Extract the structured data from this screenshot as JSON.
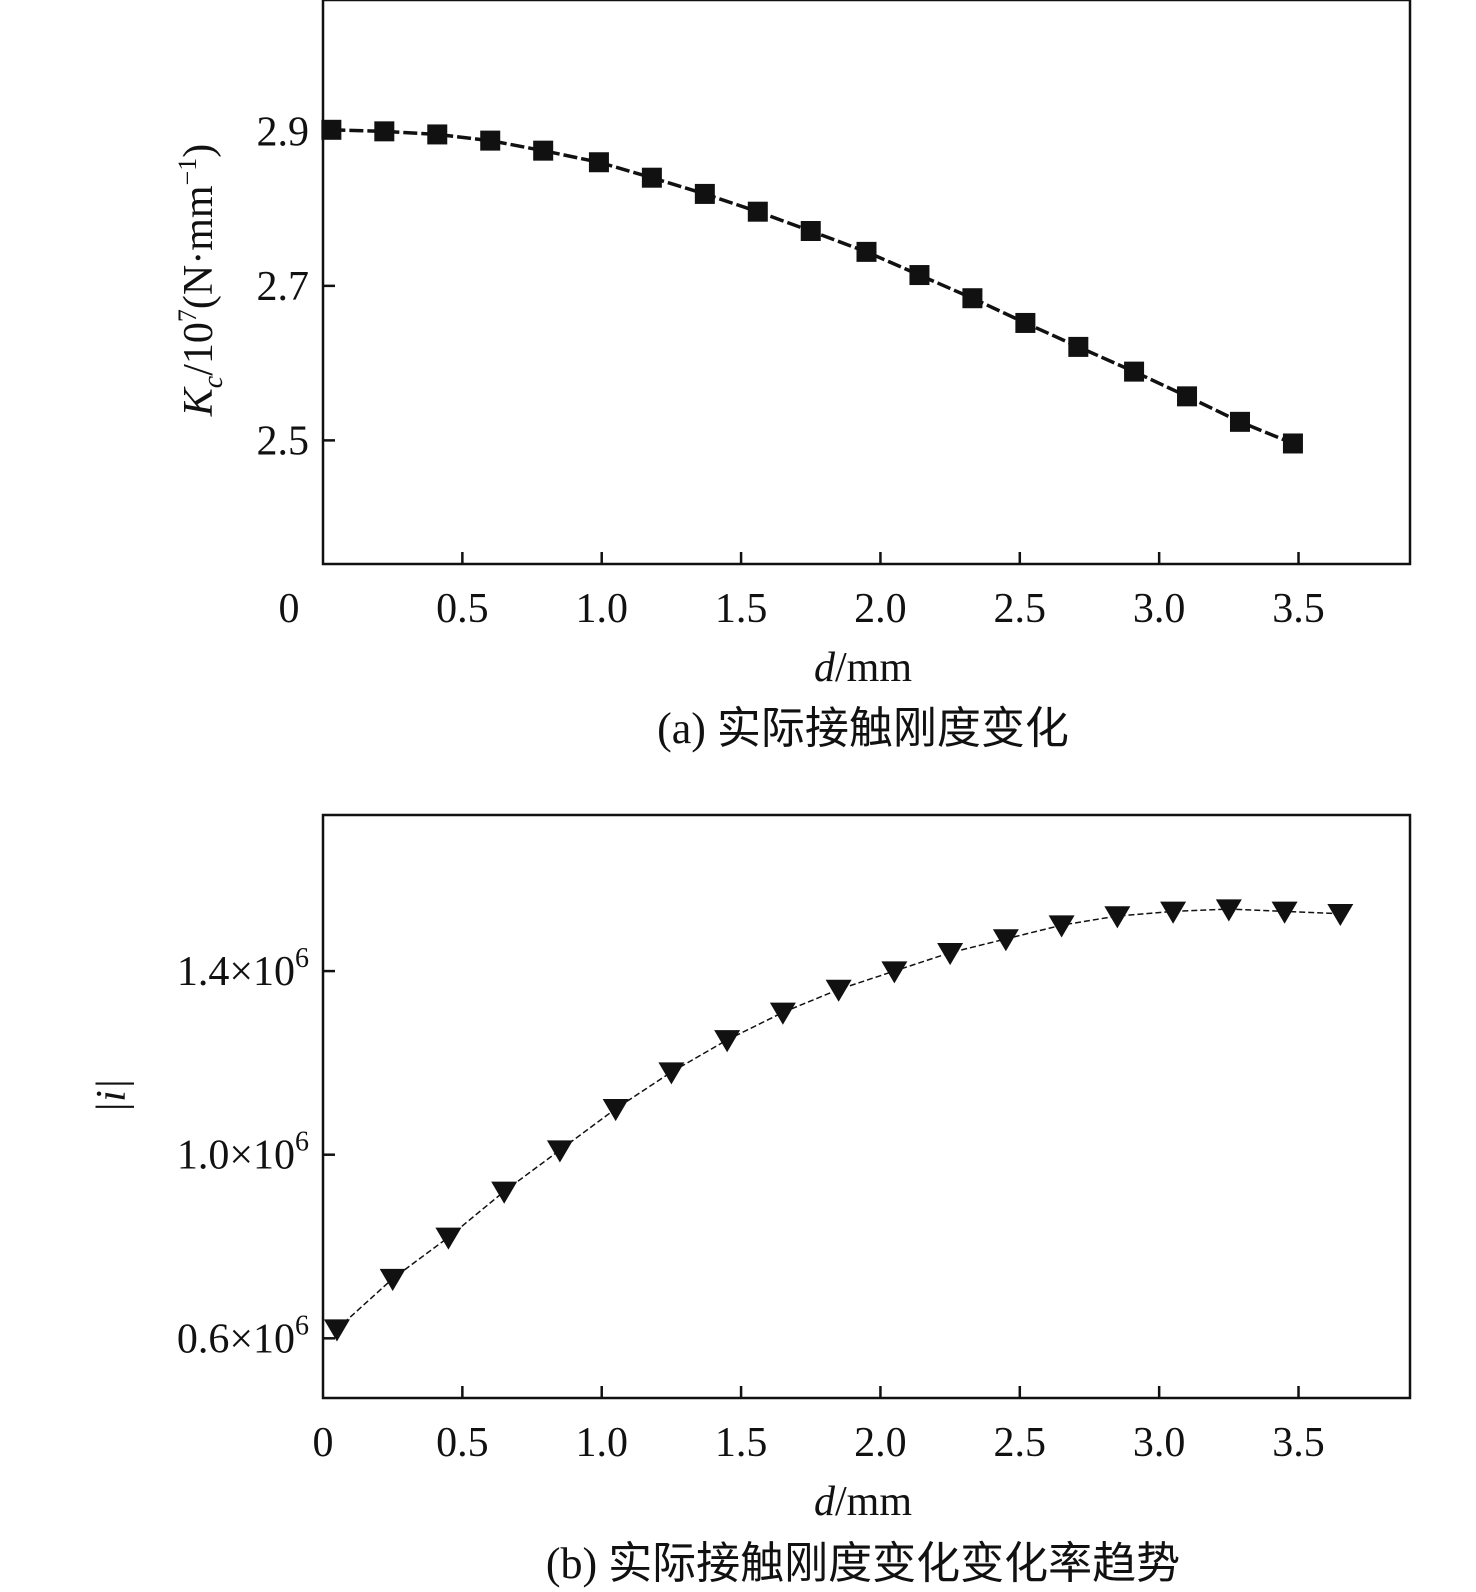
{
  "chart_data": [
    {
      "type": "line",
      "title": "(a) 实际接触刚度变化",
      "xlabel_italic": "d",
      "xlabel_rest": "/mm",
      "ylabel": "Kc/10^7(N·mm^-1)",
      "ylabel_parts": {
        "k": "K",
        "sub": "c",
        "mid": "/10",
        "exp": "7",
        "open": "(N·mm",
        "neg": "−1",
        "close": ")"
      },
      "xlim": [
        0,
        3.9
      ],
      "ylim": [
        2.34,
        3.07
      ],
      "xticks": [
        0,
        0.5,
        1.0,
        1.5,
        2.0,
        2.5,
        3.0,
        3.5
      ],
      "xtick_labels": [
        "0",
        "0.5",
        "1.0",
        "1.5",
        "2.0",
        "2.5",
        "3.0",
        "3.5"
      ],
      "yticks": [
        2.5,
        2.7,
        2.9
      ],
      "ytick_labels": [
        "2.5",
        "2.7",
        "2.9"
      ],
      "marker": "square",
      "grid": false,
      "series": [
        {
          "x": [
            0.03,
            0.22,
            0.41,
            0.6,
            0.79,
            0.99,
            1.18,
            1.37,
            1.56,
            1.75,
            1.95,
            2.14,
            2.33,
            2.52,
            2.71,
            2.91,
            3.1,
            3.29,
            3.48
          ],
          "y": [
            2.902,
            2.9,
            2.896,
            2.888,
            2.875,
            2.86,
            2.84,
            2.819,
            2.796,
            2.771,
            2.744,
            2.714,
            2.684,
            2.652,
            2.621,
            2.589,
            2.557,
            2.524,
            2.496
          ]
        }
      ]
    },
    {
      "type": "line",
      "title": "(b) 实际接触刚度变化变化率趋势",
      "xlabel_italic": "d",
      "xlabel_rest": "/mm",
      "ylabel": "|i|",
      "xlim": [
        0,
        3.9
      ],
      "ylim": [
        0.47,
        1.74
      ],
      "xticks": [
        0,
        0.5,
        1.0,
        1.5,
        2.0,
        2.5,
        3.0,
        3.5
      ],
      "xtick_labels": [
        "0",
        "0.5",
        "1.0",
        "1.5",
        "2.0",
        "2.5",
        "3.0",
        "3.5"
      ],
      "yticks": [
        0.6,
        1.0,
        1.4
      ],
      "ytick_labels": [
        {
          "base": "0.6×10",
          "exp": "6"
        },
        {
          "base": "1.0×10",
          "exp": "6"
        },
        {
          "base": "1.4×10",
          "exp": "6"
        }
      ],
      "y_unit_multiplier": "×10^6",
      "marker": "triangle-down",
      "grid": false,
      "series": [
        {
          "x": [
            0.05,
            0.25,
            0.45,
            0.65,
            0.85,
            1.05,
            1.25,
            1.45,
            1.65,
            1.85,
            2.05,
            2.25,
            2.45,
            2.65,
            2.85,
            3.05,
            3.25,
            3.45,
            3.65
          ],
          "y": [
            0.62,
            0.73,
            0.82,
            0.92,
            1.01,
            1.1,
            1.18,
            1.25,
            1.31,
            1.36,
            1.4,
            1.44,
            1.47,
            1.5,
            1.52,
            1.53,
            1.535,
            1.53,
            1.525
          ]
        }
      ]
    }
  ]
}
